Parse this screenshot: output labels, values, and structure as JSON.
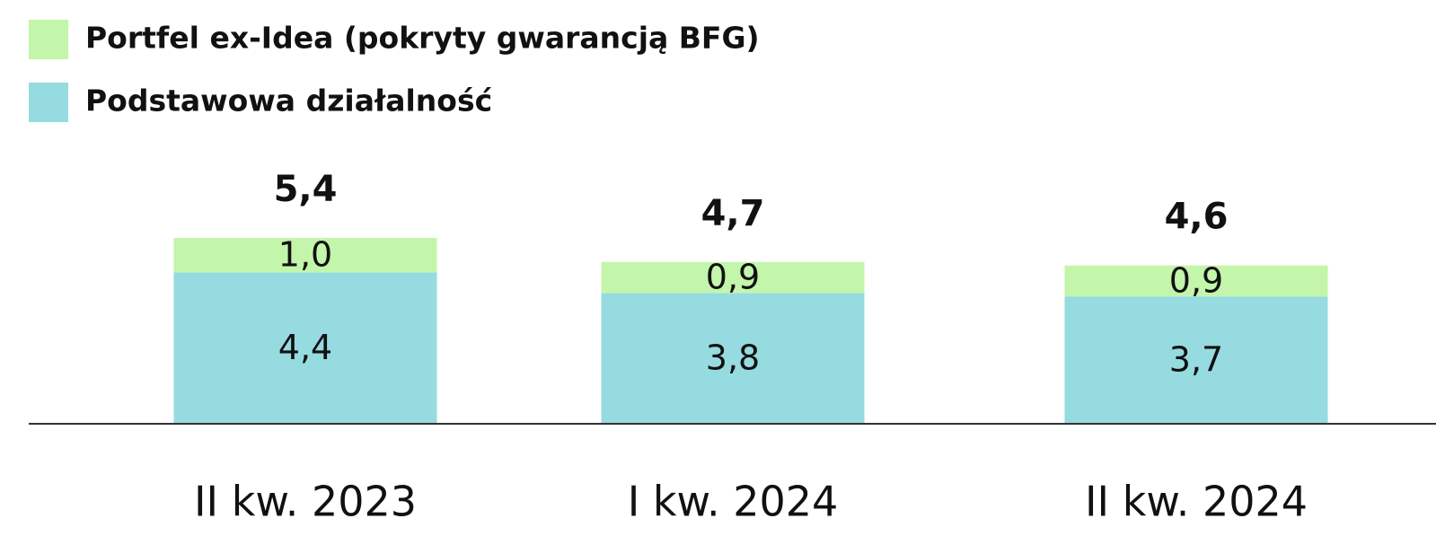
{
  "chart_data": {
    "type": "stacked_bar",
    "categories": [
      "II kw. 2023",
      "I kw. 2024",
      "II kw. 2024"
    ],
    "series": [
      {
        "name": "Podstawowa działalność",
        "color": "#96dbe0",
        "values": [
          4.4,
          3.8,
          3.7
        ],
        "value_labels": [
          "4,4",
          "3,8",
          "3,7"
        ]
      },
      {
        "name": "Portfel ex-Idea (pokryty gwarancją BFG)",
        "color": "#c3f5aa",
        "values": [
          1.0,
          0.9,
          0.9
        ],
        "value_labels": [
          "1,0",
          "0,9",
          "0,9"
        ]
      }
    ],
    "totals": [
      5.4,
      4.7,
      4.6
    ],
    "total_labels": [
      "5,4",
      "4,7",
      "4,6"
    ],
    "ylim": [
      0,
      6
    ]
  }
}
